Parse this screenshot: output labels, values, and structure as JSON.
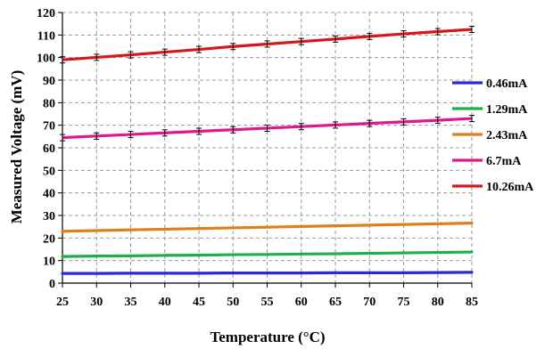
{
  "chart_data": {
    "type": "line",
    "title": "",
    "xlabel": "Temperature (°C)",
    "ylabel": "Measured Voltage (mV)",
    "x": [
      25,
      30,
      35,
      40,
      45,
      50,
      55,
      60,
      65,
      70,
      75,
      80,
      85
    ],
    "xlim": [
      25,
      85
    ],
    "ylim": [
      0,
      120
    ],
    "xticks": [
      "25",
      "30",
      "35",
      "40",
      "45",
      "50",
      "55",
      "60",
      "65",
      "70",
      "75",
      "80",
      "85"
    ],
    "yticks": [
      "0",
      "10",
      "20",
      "30",
      "40",
      "50",
      "60",
      "70",
      "80",
      "90",
      "100",
      "110",
      "120"
    ],
    "grid": true,
    "legend_position": "right",
    "series": [
      {
        "name": "0.46mA",
        "color": "#2a2ad6",
        "error_bars": false,
        "values": [
          4.3,
          4.3,
          4.4,
          4.4,
          4.4,
          4.5,
          4.5,
          4.5,
          4.6,
          4.6,
          4.6,
          4.7,
          4.8
        ]
      },
      {
        "name": "1.29mA",
        "color": "#1db04a",
        "error_bars": false,
        "values": [
          11.8,
          12.0,
          12.1,
          12.3,
          12.4,
          12.6,
          12.7,
          12.9,
          13.0,
          13.2,
          13.4,
          13.6,
          13.8
        ]
      },
      {
        "name": "2.43mA",
        "color": "#e07f1a",
        "error_bars": false,
        "values": [
          23.0,
          23.3,
          23.6,
          23.9,
          24.2,
          24.5,
          24.8,
          25.1,
          25.4,
          25.7,
          26.0,
          26.3,
          26.6
        ]
      },
      {
        "name": "6.7mA",
        "color": "#e0198a",
        "error_bars": true,
        "values": [
          64.5,
          65.2,
          65.9,
          66.6,
          67.3,
          68.0,
          68.7,
          69.4,
          70.1,
          70.8,
          71.5,
          72.2,
          73.0
        ]
      },
      {
        "name": "10.26mA",
        "color": "#d9161c",
        "error_bars": true,
        "values": [
          99.0,
          100.1,
          101.2,
          102.4,
          103.6,
          104.9,
          106.0,
          107.1,
          108.2,
          109.4,
          110.5,
          111.5,
          112.5
        ]
      }
    ]
  }
}
